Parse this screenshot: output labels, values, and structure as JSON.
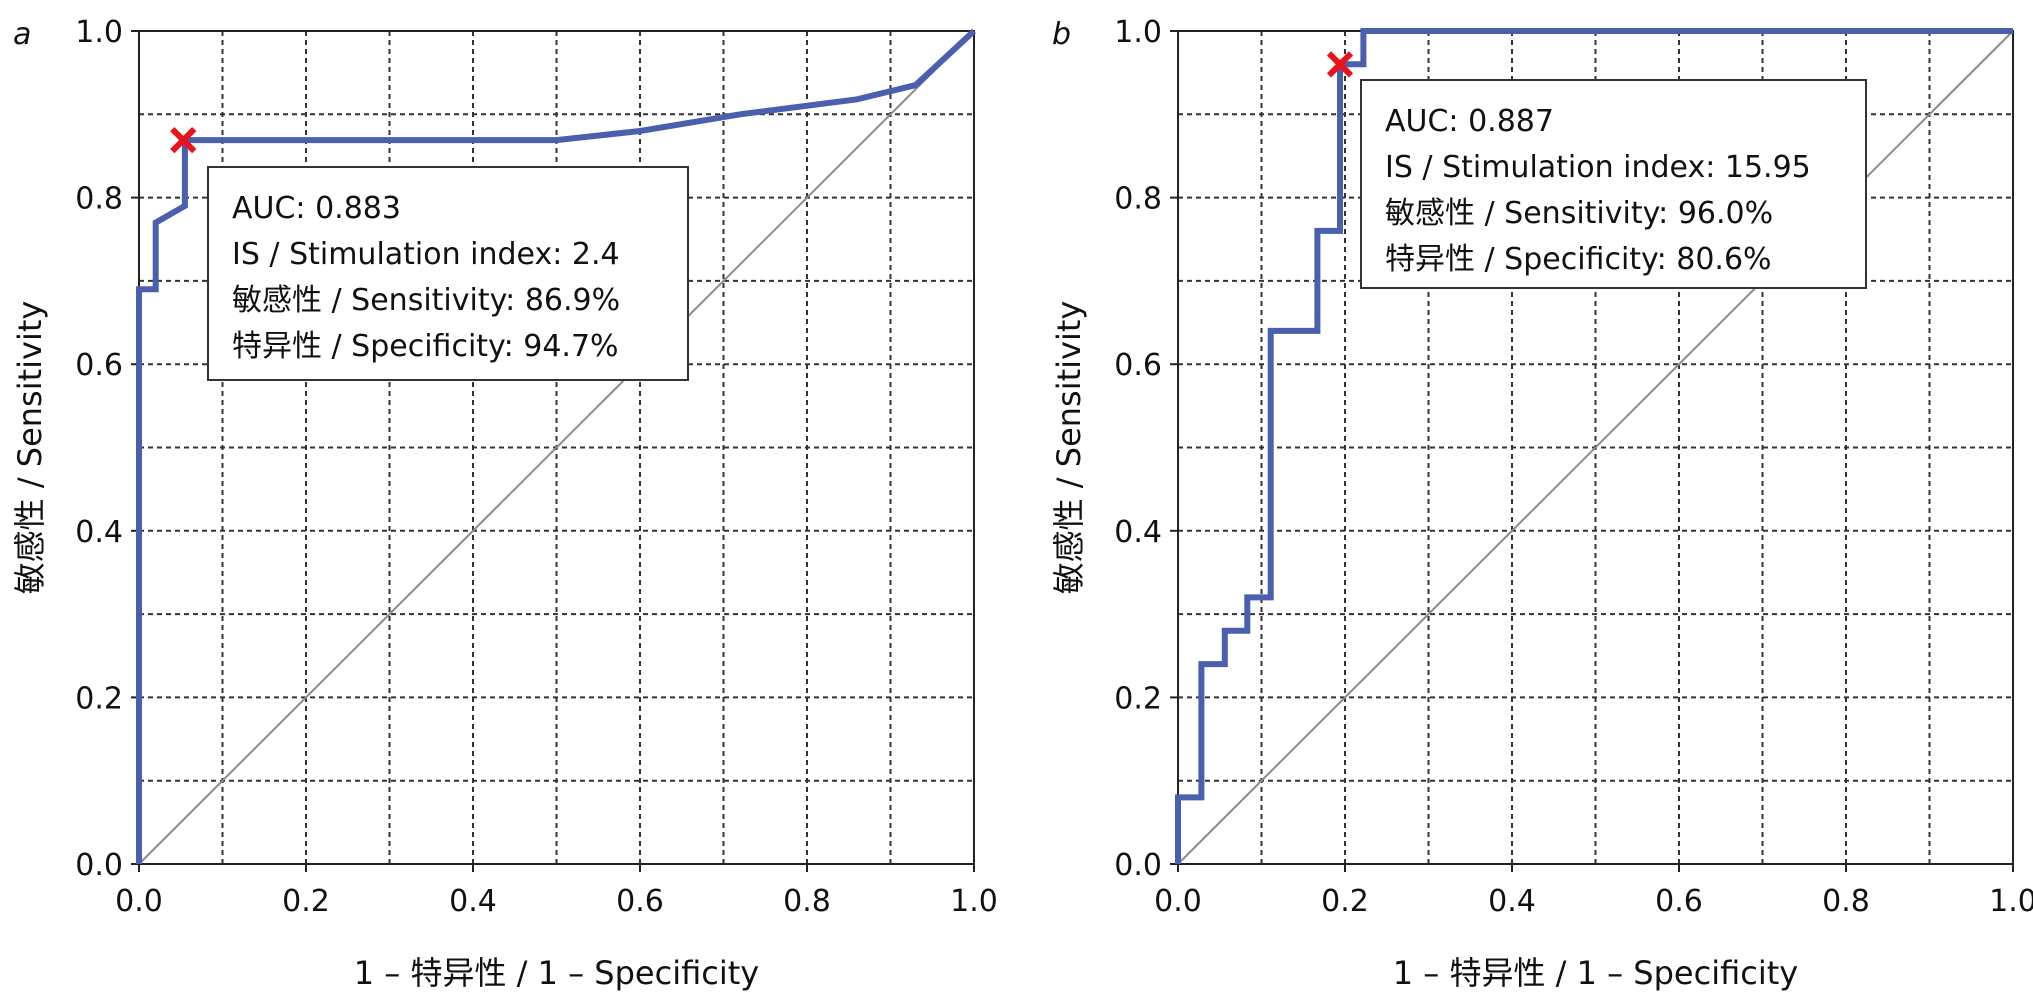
{
  "chart_data": [
    {
      "type": "line",
      "panel_label": "a",
      "xlabel": "1 – 特异性 / 1 – Specificity",
      "ylabel": "敏感性 / Sensitivity",
      "xlim": [
        0,
        1
      ],
      "ylim": [
        0,
        1
      ],
      "x_ticks": [
        "0.0",
        "0.2",
        "0.4",
        "0.6",
        "0.8",
        "1.0"
      ],
      "y_ticks": [
        "0.0",
        "0.2",
        "0.4",
        "0.6",
        "0.8",
        "1.0"
      ],
      "grid": true,
      "diagonal": true,
      "roc_color": "#4a5fad",
      "marker_color": "#e8141c",
      "roc": [
        [
          0,
          0
        ],
        [
          0,
          0.69
        ],
        [
          0.02,
          0.69
        ],
        [
          0.02,
          0.77
        ],
        [
          0.055,
          0.79
        ],
        [
          0.055,
          0.869
        ],
        [
          0.5,
          0.869
        ],
        [
          0.6,
          0.88
        ],
        [
          0.72,
          0.9
        ],
        [
          0.86,
          0.918
        ],
        [
          0.93,
          0.935
        ],
        [
          1,
          1
        ]
      ],
      "optimal_point": [
        0.053,
        0.869
      ],
      "annotation": [
        "AUC: 0.883",
        "IS / Stimulation index: 2.4",
        "敏感性 / Sensitivity: 86.9%",
        "特异性 / Specificity: 94.7%"
      ]
    },
    {
      "type": "line",
      "panel_label": "b",
      "xlabel": "1 – 特异性 / 1 – Specificity",
      "ylabel": "敏感性 / Sensitivity",
      "xlim": [
        0,
        1
      ],
      "ylim": [
        0,
        1
      ],
      "x_ticks": [
        "0.0",
        "0.2",
        "0.4",
        "0.6",
        "0.8",
        "1.0"
      ],
      "y_ticks": [
        "0.0",
        "0.2",
        "0.4",
        "0.6",
        "0.8",
        "1.0"
      ],
      "grid": true,
      "diagonal": true,
      "roc_color": "#4a5fad",
      "marker_color": "#e8141c",
      "roc": [
        [
          0,
          0
        ],
        [
          0,
          0.08
        ],
        [
          0.028,
          0.08
        ],
        [
          0.028,
          0.24
        ],
        [
          0.056,
          0.24
        ],
        [
          0.056,
          0.28
        ],
        [
          0.083,
          0.28
        ],
        [
          0.083,
          0.32
        ],
        [
          0.111,
          0.32
        ],
        [
          0.111,
          0.64
        ],
        [
          0.167,
          0.64
        ],
        [
          0.167,
          0.76
        ],
        [
          0.194,
          0.76
        ],
        [
          0.194,
          0.96
        ],
        [
          0.222,
          0.96
        ],
        [
          0.222,
          1
        ],
        [
          1,
          1
        ]
      ],
      "optimal_point": [
        0.194,
        0.96
      ],
      "annotation": [
        "AUC: 0.887",
        "IS / Stimulation index: 15.95",
        "敏感性 / Sensitivity: 96.0%",
        "特异性 / Specificity: 80.6%"
      ]
    }
  ]
}
